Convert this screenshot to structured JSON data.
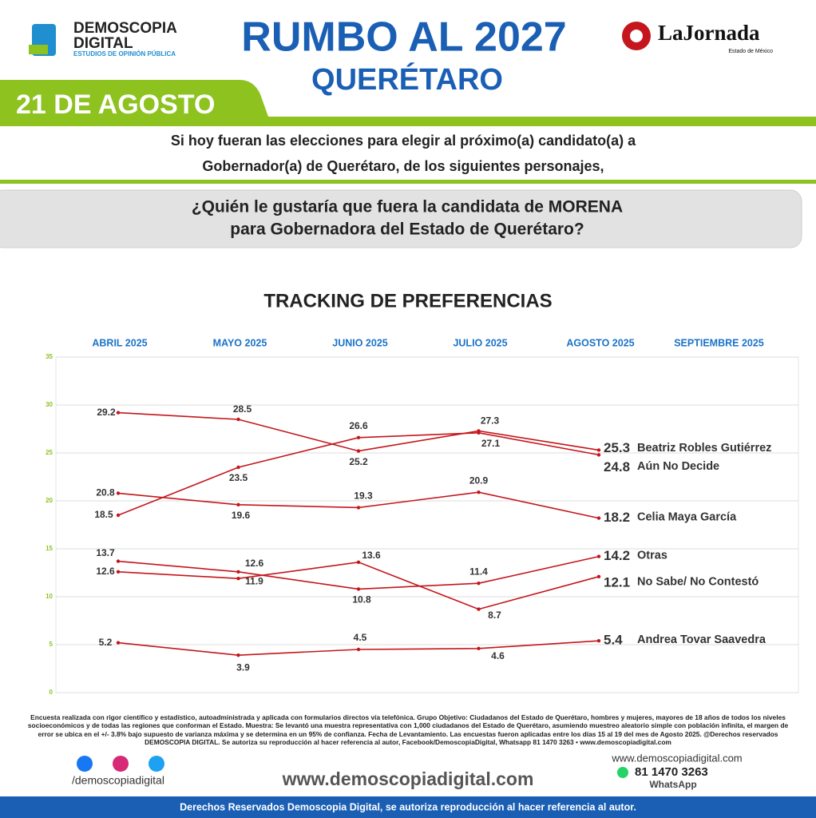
{
  "header": {
    "brand": "DEMOSCOPIA",
    "brand2": "DIGITAL",
    "brand_sub": "ESTUDIOS DE OPINIÓN PÚBLICA",
    "title": "RUMBO AL 2027",
    "subtitle": "QUERÉTARO",
    "partner": "LaJornada",
    "partner_sub": "Estado de México",
    "date": "21 DE AGOSTO",
    "intro_1": "Si hoy fueran las elecciones para elegir al próximo(a) candidato(a) a",
    "intro_2": "Gobernador(a) de Querétaro, de los siguientes personajes,",
    "question_1": "¿Quién le gustaría que fuera la candidata de MORENA",
    "question_2": "para Gobernadora del Estado de Querétaro?"
  },
  "chart_data": {
    "type": "line",
    "title": "TRACKING DE PREFERENCIAS",
    "categories": [
      "ABRIL 2025",
      "MAYO 2025",
      "JUNIO 2025",
      "JULIO 2025",
      "AGOSTO 2025",
      "SEPTIEMBRE 2025"
    ],
    "series": [
      {
        "name": "Beatriz Robles Gutiérrez",
        "color": "#c4161c",
        "values": [
          29.2,
          28.5,
          25.2,
          27.3,
          25.3,
          null
        ]
      },
      {
        "name": "Aún No Decide",
        "color": "#c4161c",
        "values": [
          18.5,
          23.5,
          26.6,
          27.1,
          24.8,
          null
        ]
      },
      {
        "name": "Celia Maya García",
        "color": "#c4161c",
        "values": [
          20.8,
          19.6,
          19.3,
          20.9,
          18.2,
          null
        ]
      },
      {
        "name": "Otras",
        "color": "#c4161c",
        "values": [
          13.7,
          12.6,
          10.8,
          11.4,
          14.2,
          null
        ]
      },
      {
        "name": "No Sabe/ No Contestó",
        "color": "#c4161c",
        "values": [
          12.6,
          11.9,
          13.6,
          8.7,
          12.1,
          null
        ]
      },
      {
        "name": "Andrea Tovar Saavedra",
        "color": "#c4161c",
        "values": [
          5.2,
          3.9,
          4.5,
          4.6,
          5.4,
          null
        ]
      }
    ],
    "ylim": [
      0,
      35
    ],
    "yticks": [
      0,
      5,
      10,
      15,
      20,
      25,
      30,
      35
    ],
    "grid": true
  },
  "footer": {
    "note": "Encuesta realizada con rigor científico y estadístico, autoadministrada y aplicada con formularios directos vía telefónica. Grupo Objetivo: Ciudadanos del Estado de Querétaro, hombres y mujeres, mayores de 18 años de todos los niveles socioeconómicos y de todas las regiones que conforman el Estado. Muestra: Se levantó una muestra representativa con 1,000 ciudadanos del Estado de Querétaro, asumiendo muestreo aleatorio simple con población infinita, el margen de error se ubica en el +/- 3.8% bajo supuesto de varianza máxima y se determina en un 95% de confianza. Fecha de Levantamiento. Las encuestas fueron aplicadas entre los días 15 al 19 del mes de Agosto 2025. @Derechos reservados DEMOSCOPIA DIGITAL. Se autoriza su reproducción al hacer referencia al autor, Facebook/DemoscopiaDigital, Whatsapp 81 1470 3263 • www.demoscopiadigital.com",
    "social": "/demoscopiadigital",
    "website": "www.demoscopiadigital.com",
    "website_small": "www.demoscopiadigital.com",
    "phone": "81 1470 3263",
    "whatsapp": "WhatsApp",
    "rights": "Derechos Reservados Demoscopia Digital, se autoriza reproducción al hacer referencia al autor."
  }
}
